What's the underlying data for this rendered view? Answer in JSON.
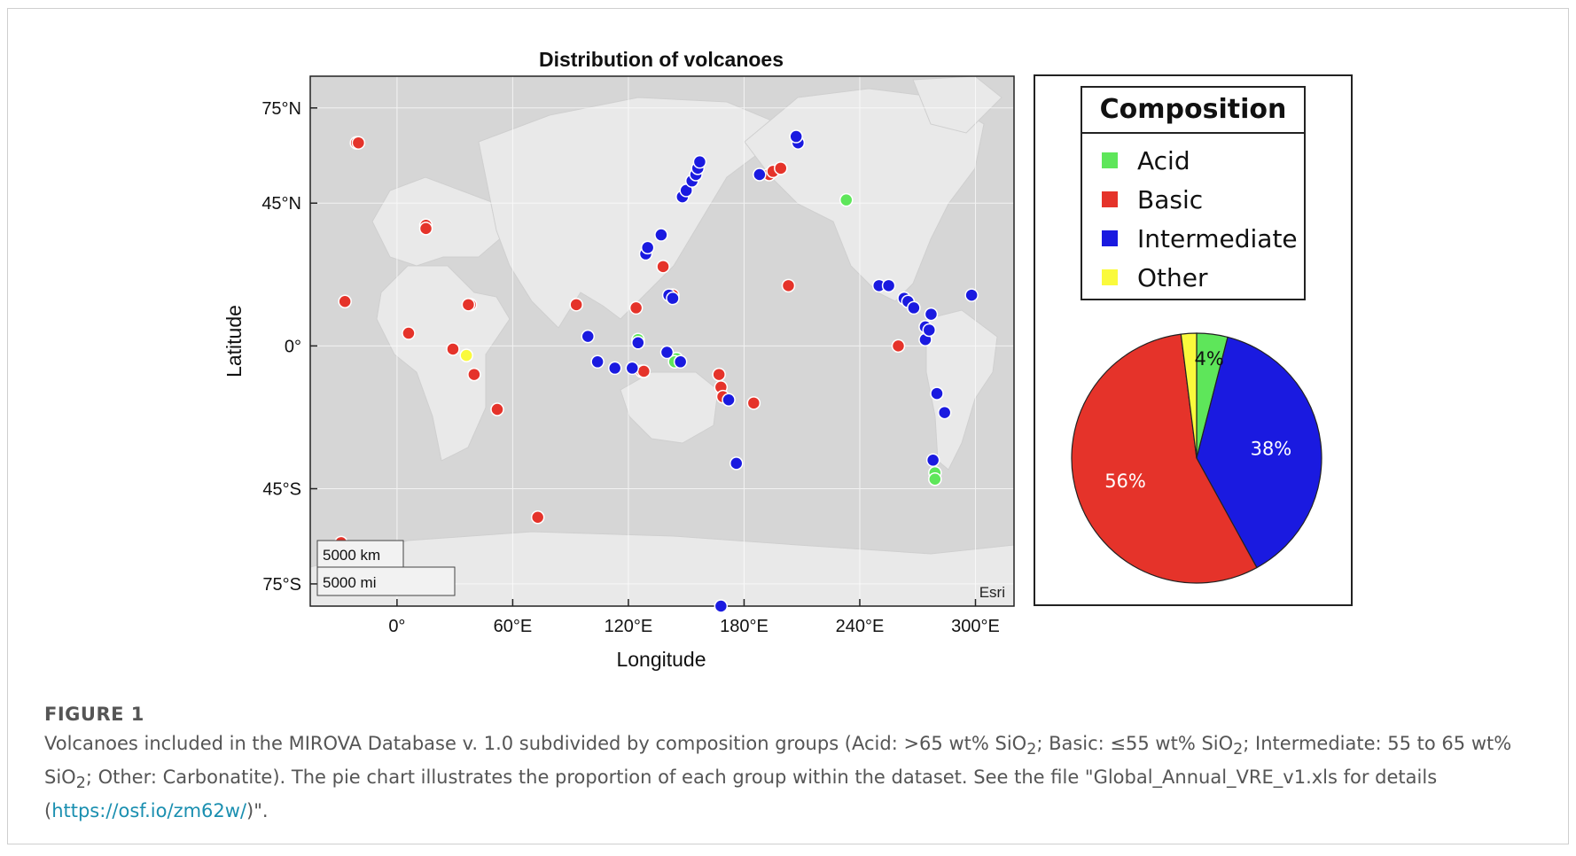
{
  "chart_data": [
    {
      "type": "scatter",
      "title": "Distribution of volcanoes",
      "xlabel": "Longitude",
      "ylabel": "Latitude",
      "xlim": [
        -45,
        320
      ],
      "ylim": [
        -82,
        85
      ],
      "x_ticks": [
        "0°",
        "60°E",
        "120°E",
        "180°E",
        "240°E",
        "300°E"
      ],
      "x_tick_values": [
        0,
        60,
        120,
        180,
        240,
        300
      ],
      "y_ticks": [
        "75°N",
        "45°N",
        "0°",
        "45°S",
        "75°S"
      ],
      "y_tick_values": [
        75,
        45,
        0,
        -45,
        -75
      ],
      "grid": true,
      "basemap_credit": "Esri",
      "scalebar": {
        "km": "5000 km",
        "mi": "5000 mi"
      },
      "series": [
        {
          "name": "Acid",
          "color": "#5ee65a",
          "points": [
            [
              233,
              46
            ],
            [
              125,
              2
            ],
            [
              145,
              -4
            ],
            [
              144,
              -5
            ],
            [
              279,
              -40
            ],
            [
              279,
              -42
            ]
          ]
        },
        {
          "name": "Basic",
          "color": "#e5332a",
          "points": [
            [
              -21,
              64
            ],
            [
              -20,
              64
            ],
            [
              -27,
              14
            ],
            [
              6,
              4
            ],
            [
              15,
              38
            ],
            [
              15,
              37
            ],
            [
              29,
              -1
            ],
            [
              38,
              13
            ],
            [
              37,
              13
            ],
            [
              40,
              -9
            ],
            [
              52,
              -20
            ],
            [
              73,
              -54
            ],
            [
              93,
              13
            ],
            [
              124,
              12
            ],
            [
              127,
              -8
            ],
            [
              128,
              -8
            ],
            [
              138,
              25
            ],
            [
              143,
              16
            ],
            [
              167,
              -9
            ],
            [
              168,
              -13
            ],
            [
              169,
              -16
            ],
            [
              185,
              -18
            ],
            [
              193,
              54
            ],
            [
              195,
              55
            ],
            [
              199,
              56
            ],
            [
              203,
              19
            ],
            [
              260,
              0
            ],
            [
              -29,
              -62
            ],
            [
              -29,
              -64
            ]
          ]
        },
        {
          "name": "Intermediate",
          "color": "#1a1ae0",
          "points": [
            [
              99,
              3
            ],
            [
              104,
              -5
            ],
            [
              113,
              -7
            ],
            [
              122,
              -7
            ],
            [
              125,
              1
            ],
            [
              129,
              29
            ],
            [
              130,
              31
            ],
            [
              137,
              35
            ],
            [
              140,
              -2
            ],
            [
              141,
              16
            ],
            [
              143,
              15
            ],
            [
              147,
              -5
            ],
            [
              148,
              47
            ],
            [
              150,
              49
            ],
            [
              153,
              52
            ],
            [
              155,
              54
            ],
            [
              156,
              56
            ],
            [
              157,
              58
            ],
            [
              172,
              -17
            ],
            [
              176,
              -37
            ],
            [
              188,
              54
            ],
            [
              208,
              64
            ],
            [
              207,
              66
            ],
            [
              250,
              19
            ],
            [
              255,
              19
            ],
            [
              263,
              15
            ],
            [
              265,
              14
            ],
            [
              268,
              12
            ],
            [
              274,
              6
            ],
            [
              274,
              2
            ],
            [
              276,
              5
            ],
            [
              277,
              10
            ],
            [
              280,
              -15
            ],
            [
              284,
              -21
            ],
            [
              278,
              -36
            ],
            [
              298,
              16
            ],
            [
              168,
              -82
            ]
          ]
        },
        {
          "name": "Other",
          "color": "#fafa3c",
          "points": [
            [
              36,
              -3
            ]
          ]
        }
      ]
    },
    {
      "type": "pie",
      "title": "Composition",
      "labels": [
        "Acid",
        "Basic",
        "Intermediate",
        "Other"
      ],
      "values": [
        4,
        56,
        38,
        2
      ],
      "colors": [
        "#5ee65a",
        "#e5332a",
        "#1a1ae0",
        "#fafa3c"
      ],
      "data_labels": [
        "4%",
        "56%",
        "38%",
        ""
      ]
    }
  ],
  "legend": {
    "title": "Composition",
    "items": [
      {
        "label": "Acid",
        "color": "#5ee65a"
      },
      {
        "label": "Basic",
        "color": "#e5332a"
      },
      {
        "label": "Intermediate",
        "color": "#1a1ae0"
      },
      {
        "label": "Other",
        "color": "#fafa3c"
      }
    ]
  },
  "caption": {
    "figure_label": "FIGURE 1",
    "text_1": "Volcanoes included in the MIROVA Database v. 1.0 subdivided by composition groups (Acid: >65 wt% SiO",
    "sub_1": "2",
    "text_2": "; Basic: ≤55 wt% SiO",
    "sub_2": "2",
    "text_3": "; Intermediate: 55 to 65 wt% SiO",
    "sub_3": "2",
    "text_4": "; Other: Carbonatite). The pie chart illustrates the proportion of each group within the dataset. See the file \"Global_Annual_VRE_v1.xls for details (",
    "link": "https://osf.io/zm62w/",
    "text_5": ")\"."
  }
}
